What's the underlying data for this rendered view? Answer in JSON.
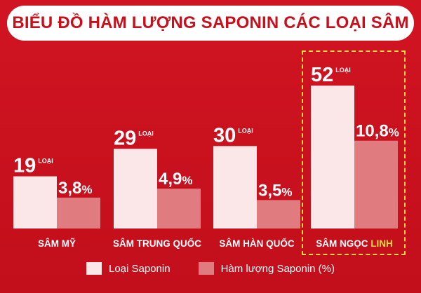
{
  "title": "BIỂU ĐỒ HÀM LƯỢNG SAPONIN CÁC LOẠI SÂM",
  "colors": {
    "background": "#c8101c",
    "bar_saponin_types": "#fbe6e8",
    "bar_saponin_content": "#e07b7f",
    "highlight": "#ffd640"
  },
  "legend": {
    "saponin_types": "Loại Saponin",
    "saponin_content": "Hàm lượng Saponin (%)"
  },
  "chart_data": {
    "type": "bar",
    "title": "BIỂU ĐỒ HÀM LƯỢNG SAPONIN CÁC LOẠI SÂM",
    "categories": [
      {
        "main": "SÂM MỸ",
        "accent": ""
      },
      {
        "main": "SÂM TRUNG QUỐC",
        "accent": ""
      },
      {
        "main": "SÂM HÀN QUỐC",
        "accent": ""
      },
      {
        "main": "SÂM NGỌC",
        "accent": "LINH"
      }
    ],
    "series": [
      {
        "name": "Loại Saponin",
        "values": [
          19,
          29,
          30,
          52
        ],
        "labels": [
          "19",
          "29",
          "30",
          "52"
        ],
        "unit": "LOẠI"
      },
      {
        "name": "Hàm lượng Saponin (%)",
        "values": [
          3.8,
          4.9,
          3.5,
          10.8
        ],
        "labels": [
          "3,8",
          "4,9",
          "3,5",
          "10,8"
        ],
        "unit": "%"
      }
    ],
    "highlighted_category": 3,
    "legend_position": "bottom",
    "grid": false
  }
}
